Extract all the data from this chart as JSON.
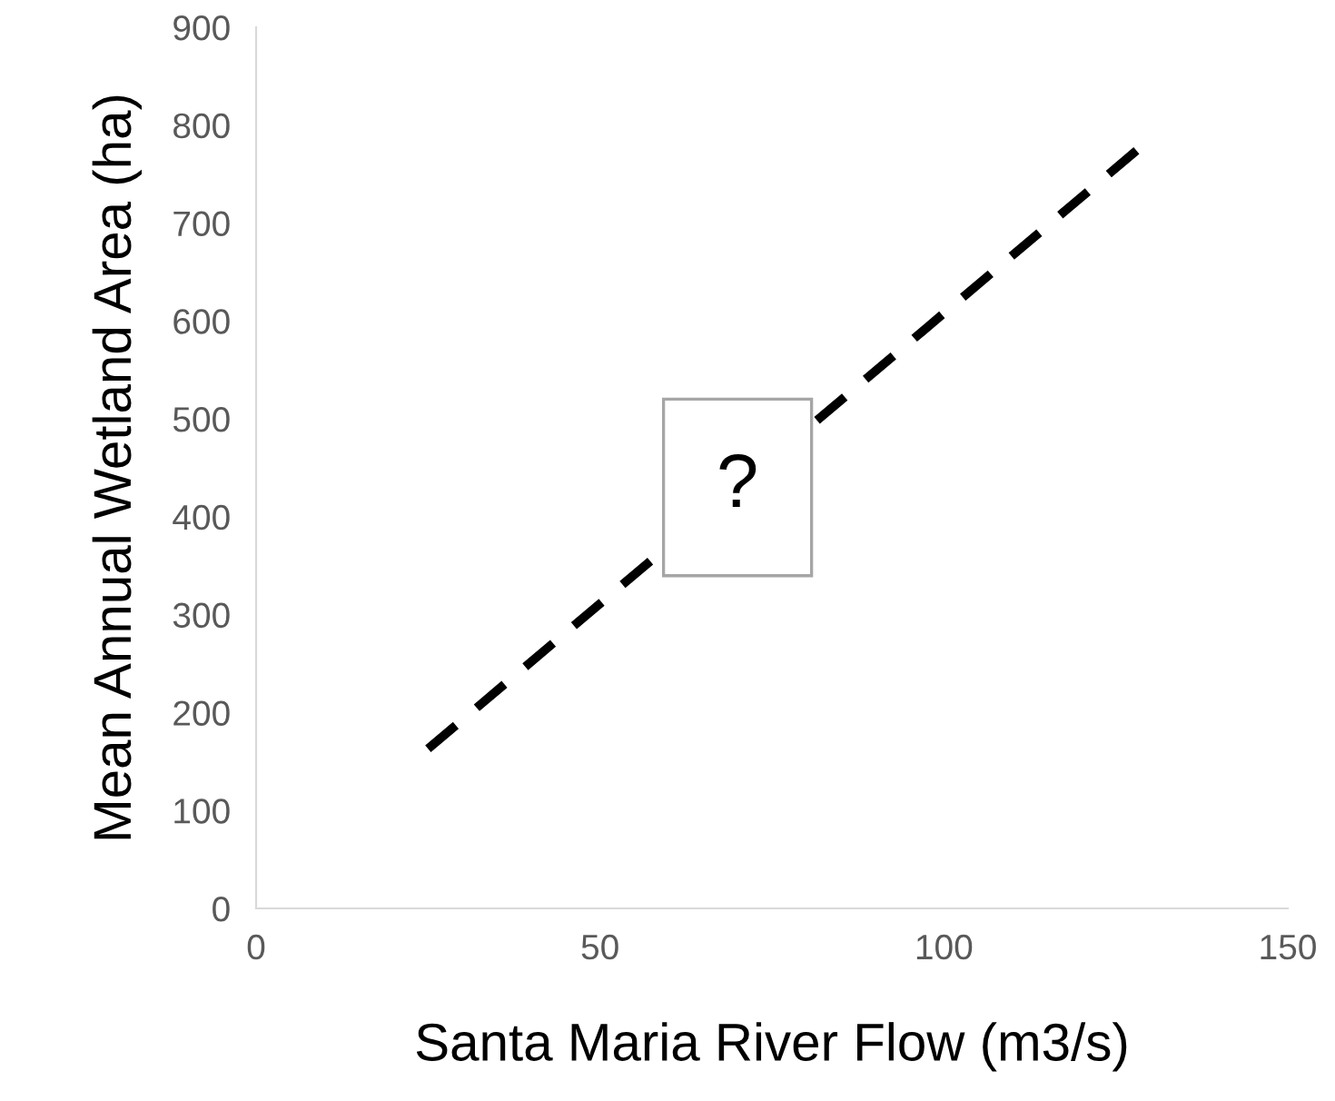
{
  "chart_data": {
    "type": "line",
    "xlabel": "Santa Maria River Flow (m3/s)",
    "ylabel": "Mean Annual Wetland Area (ha)",
    "x": [
      25,
      128
    ],
    "values": [
      163,
      774
    ],
    "color": "#000000",
    "line_style": "dashed",
    "marker": "none",
    "xlim": [
      0,
      150
    ],
    "xticks": [
      0,
      50,
      100,
      150
    ],
    "ylim": [
      0,
      900
    ],
    "yticks": [
      0,
      100,
      200,
      300,
      400,
      500,
      600,
      700,
      800,
      900
    ],
    "grid": false,
    "legend": false,
    "annotations": [
      {
        "text": "?",
        "x": 70,
        "y": 430
      }
    ]
  }
}
